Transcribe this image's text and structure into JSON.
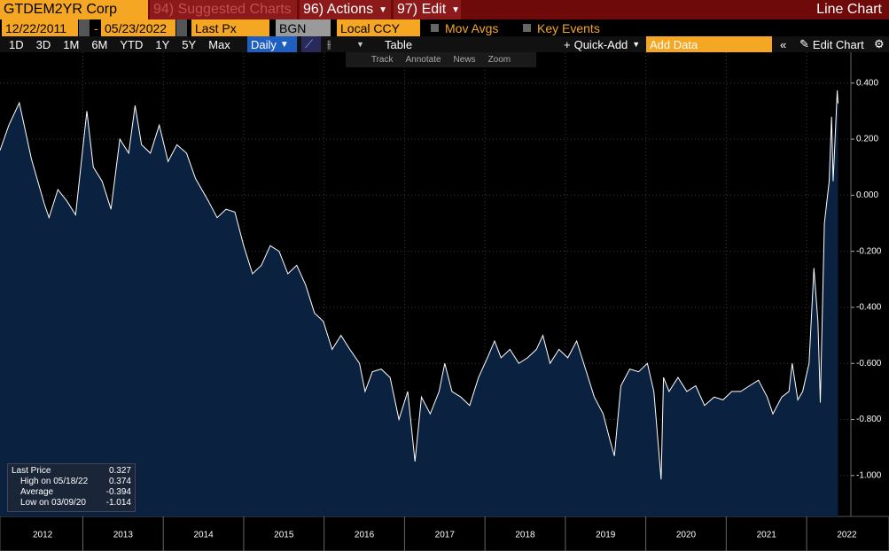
{
  "toolbar": {
    "ticker": "GTDEM2YR Corp",
    "suggested": "94) Suggested Charts",
    "actions": "96) Actions",
    "edit": "97) Edit",
    "chart_kind": "Line Chart"
  },
  "controls": {
    "start_date": "12/22/2011",
    "dash": "-",
    "end_date": "05/23/2022",
    "field": "Last Px",
    "source": "BGN",
    "currency": "Local CCY",
    "mov_avgs": "Mov Avgs",
    "key_events": "Key Events"
  },
  "periods": [
    "1D",
    "3D",
    "1M",
    "6M",
    "YTD",
    "1Y",
    "5Y",
    "Max"
  ],
  "frequency": "Daily",
  "table": "Table",
  "quick_add": "Quick-Add",
  "add_data": "Add Data",
  "edit_chart": "Edit Chart",
  "tools": [
    "Track",
    "Annotate",
    "News",
    "Zoom"
  ],
  "chart_data": {
    "type": "line",
    "color": "#ffffff",
    "fill_color": "#0b2140",
    "grid": true,
    "x": [
      2011.97,
      2012.08,
      2012.21,
      2012.36,
      2012.52,
      2012.58,
      2012.69,
      2012.8,
      2012.91,
      2013.05,
      2013.13,
      2013.24,
      2013.35,
      2013.46,
      2013.57,
      2013.65,
      2013.73,
      2013.84,
      2013.95,
      2014.06,
      2014.17,
      2014.29,
      2014.4,
      2014.56,
      2014.67,
      2014.78,
      2014.89,
      2015.0,
      2015.11,
      2015.22,
      2015.33,
      2015.44,
      2015.55,
      2015.66,
      2015.77,
      2015.88,
      2015.99,
      2016.1,
      2016.21,
      2016.32,
      2016.44,
      2016.51,
      2016.6,
      2016.71,
      2016.82,
      2016.93,
      2017.04,
      2017.13,
      2017.21,
      2017.32,
      2017.43,
      2017.5,
      2017.59,
      2017.7,
      2017.81,
      2017.92,
      2018.03,
      2018.12,
      2018.2,
      2018.31,
      2018.42,
      2018.53,
      2018.64,
      2018.72,
      2018.81,
      2018.92,
      2019.03,
      2019.14,
      2019.25,
      2019.36,
      2019.47,
      2019.56,
      2019.61,
      2019.69,
      2019.8,
      2019.91,
      2020.02,
      2020.1,
      2020.19,
      2020.22,
      2020.29,
      2020.4,
      2020.51,
      2020.62,
      2020.73,
      2020.85,
      2020.96,
      2021.07,
      2021.18,
      2021.29,
      2021.4,
      2021.51,
      2021.58,
      2021.69,
      2021.78,
      2021.82,
      2021.89,
      2021.95,
      2022.03,
      2022.09,
      2022.14,
      2022.17,
      2022.22,
      2022.28,
      2022.31,
      2022.33,
      2022.38,
      2022.39
    ],
    "values": [
      0.16,
      0.25,
      0.33,
      0.13,
      -0.03,
      -0.08,
      0.02,
      -0.02,
      -0.07,
      0.3,
      0.1,
      0.05,
      -0.05,
      0.2,
      0.15,
      0.32,
      0.18,
      0.15,
      0.25,
      0.12,
      0.18,
      0.15,
      0.06,
      -0.02,
      -0.08,
      -0.05,
      -0.06,
      -0.18,
      -0.28,
      -0.25,
      -0.18,
      -0.2,
      -0.28,
      -0.25,
      -0.32,
      -0.42,
      -0.45,
      -0.55,
      -0.5,
      -0.55,
      -0.6,
      -0.7,
      -0.63,
      -0.62,
      -0.65,
      -0.8,
      -0.7,
      -0.95,
      -0.72,
      -0.78,
      -0.7,
      -0.6,
      -0.7,
      -0.72,
      -0.75,
      -0.65,
      -0.58,
      -0.52,
      -0.58,
      -0.55,
      -0.6,
      -0.58,
      -0.55,
      -0.5,
      -0.6,
      -0.55,
      -0.58,
      -0.52,
      -0.62,
      -0.72,
      -0.78,
      -0.88,
      -0.93,
      -0.68,
      -0.62,
      -0.63,
      -0.6,
      -0.7,
      -1.014,
      -0.65,
      -0.7,
      -0.65,
      -0.7,
      -0.68,
      -0.75,
      -0.72,
      -0.73,
      -0.7,
      -0.7,
      -0.68,
      -0.66,
      -0.72,
      -0.78,
      -0.72,
      -0.7,
      -0.6,
      -0.73,
      -0.7,
      -0.6,
      -0.26,
      -0.45,
      -0.74,
      -0.1,
      0.05,
      0.28,
      0.05,
      0.374,
      0.327
    ],
    "xlim": [
      2011.97,
      2022.55
    ],
    "xticks": [
      {
        "value": 2012.5,
        "label": "2012"
      },
      {
        "value": 2013.5,
        "label": "2013"
      },
      {
        "value": 2014.5,
        "label": "2014"
      },
      {
        "value": 2015.5,
        "label": "2015"
      },
      {
        "value": 2016.5,
        "label": "2016"
      },
      {
        "value": 2017.5,
        "label": "2017"
      },
      {
        "value": 2018.5,
        "label": "2018"
      },
      {
        "value": 2019.5,
        "label": "2019"
      },
      {
        "value": 2020.5,
        "label": "2020"
      },
      {
        "value": 2021.5,
        "label": "2021"
      },
      {
        "value": 2022.5,
        "label": "2022"
      }
    ],
    "ylim": [
      -1.146,
      0.51
    ],
    "yticks": [
      {
        "value": 0.4,
        "label": "0.400"
      },
      {
        "value": 0.2,
        "label": "0.200"
      },
      {
        "value": 0,
        "label": "0.000"
      },
      {
        "value": -0.2,
        "label": "-0.200"
      },
      {
        "value": -0.4,
        "label": "-0.400"
      },
      {
        "value": -0.6,
        "label": "-0.600"
      },
      {
        "value": -0.8,
        "label": "-0.800"
      },
      {
        "value": -1.0,
        "label": "-1.000"
      }
    ],
    "stats": [
      {
        "label": "Last Price",
        "value": 0.327
      },
      {
        "label": "High on 05/18/22",
        "value": 0.374
      },
      {
        "label": "Average",
        "value": -0.394
      },
      {
        "label": "Low on 03/09/20",
        "value": -1.014
      }
    ]
  }
}
